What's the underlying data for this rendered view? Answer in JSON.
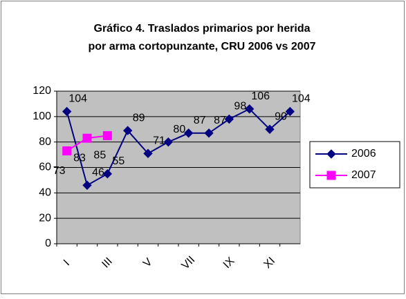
{
  "chart_data": {
    "type": "line",
    "title": [
      "Gráfico 4. Traslados primarios por herida",
      "por arma cortopunzante, CRU 2006 vs 2007"
    ],
    "categories": [
      "I",
      null,
      "III",
      null,
      "V",
      null,
      "VII",
      null,
      "IX",
      null,
      "XI",
      null
    ],
    "series": [
      {
        "name": "2006",
        "color": "#000080",
        "marker": "diamond",
        "values": [
          104,
          46,
          55,
          89,
          71,
          80,
          87,
          87,
          98,
          106,
          90,
          104
        ]
      },
      {
        "name": "2007",
        "color": "#ff00ff",
        "marker": "square",
        "values": [
          73,
          83,
          85,
          null,
          null,
          null,
          null,
          null,
          null,
          null,
          null,
          null
        ]
      }
    ],
    "ylim": [
      0,
      120
    ],
    "yticks": [
      0,
      20,
      40,
      60,
      80,
      100,
      120
    ],
    "grid": true,
    "legend": "right"
  }
}
